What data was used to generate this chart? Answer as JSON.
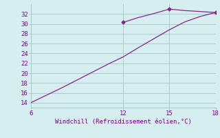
{
  "line1_x": [
    6,
    7,
    8,
    9,
    10,
    11,
    12,
    13,
    14,
    15,
    16,
    17,
    18
  ],
  "line1_y": [
    14.0,
    15.5,
    17.0,
    18.6,
    20.2,
    21.8,
    23.3,
    25.2,
    27.0,
    28.8,
    30.4,
    31.5,
    32.3
  ],
  "line2_x": [
    12,
    13,
    14,
    15,
    16,
    17,
    18
  ],
  "line2_y": [
    30.3,
    31.3,
    32.1,
    33.0,
    32.7,
    32.5,
    32.3
  ],
  "marker_points_x": [
    12,
    15,
    18
  ],
  "marker_points_y": [
    30.3,
    33.0,
    32.3
  ],
  "line_color": "#882288",
  "bg_color": "#d6eef0",
  "grid_color": "#aacccc",
  "text_color": "#770099",
  "xlabel": "Windchill (Refroidissement éolien,°C)",
  "xlim": [
    6,
    18
  ],
  "ylim": [
    13,
    34
  ],
  "xticks": [
    6,
    12,
    15,
    18
  ],
  "yticks": [
    14,
    16,
    18,
    20,
    22,
    24,
    26,
    28,
    30,
    32
  ],
  "axis_fontsize": 6.5
}
